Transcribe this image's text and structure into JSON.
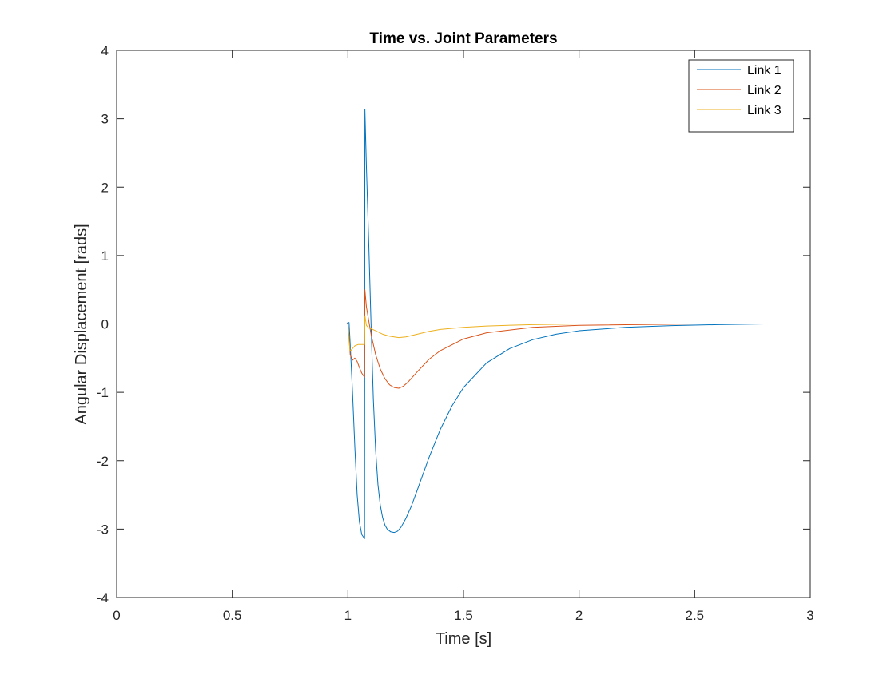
{
  "chart_data": {
    "type": "line",
    "title": "Time vs. Joint Parameters",
    "xlabel": "Time [s]",
    "ylabel": "Angular Displacement [rads]",
    "xlim": [
      0,
      3
    ],
    "ylim": [
      -4,
      4
    ],
    "xticks": [
      0,
      0.5,
      1,
      1.5,
      2,
      2.5,
      3
    ],
    "xtick_labels": [
      "0",
      "0.5",
      "1",
      "1.5",
      "2",
      "2.5",
      "3"
    ],
    "yticks": [
      -4,
      -3,
      -2,
      -1,
      0,
      1,
      2,
      3,
      4
    ],
    "ytick_labels": [
      "-4",
      "-3",
      "-2",
      "-1",
      "0",
      "1",
      "2",
      "3",
      "4"
    ],
    "grid": false,
    "legend_position": "top-right",
    "series": [
      {
        "name": "Link 1",
        "color": "#0072BD",
        "points": [
          [
            0,
            0
          ],
          [
            0.995,
            0
          ],
          [
            1.0,
            0.02
          ],
          [
            1.005,
            0.02
          ],
          [
            1.01,
            -0.3
          ],
          [
            1.02,
            -1.0
          ],
          [
            1.03,
            -1.8
          ],
          [
            1.04,
            -2.5
          ],
          [
            1.05,
            -2.9
          ],
          [
            1.06,
            -3.08
          ],
          [
            1.072,
            -3.14
          ],
          [
            1.0735,
            3.14
          ],
          [
            1.08,
            2.3
          ],
          [
            1.09,
            1.2
          ],
          [
            1.1,
            0
          ],
          [
            1.11,
            -1.1
          ],
          [
            1.12,
            -1.85
          ],
          [
            1.13,
            -2.35
          ],
          [
            1.14,
            -2.65
          ],
          [
            1.15,
            -2.83
          ],
          [
            1.16,
            -2.94
          ],
          [
            1.17,
            -3.0
          ],
          [
            1.185,
            -3.04
          ],
          [
            1.2,
            -3.05
          ],
          [
            1.215,
            -3.03
          ],
          [
            1.23,
            -2.97
          ],
          [
            1.25,
            -2.85
          ],
          [
            1.275,
            -2.66
          ],
          [
            1.3,
            -2.43
          ],
          [
            1.35,
            -1.96
          ],
          [
            1.4,
            -1.54
          ],
          [
            1.45,
            -1.2
          ],
          [
            1.5,
            -0.93
          ],
          [
            1.6,
            -0.57
          ],
          [
            1.7,
            -0.36
          ],
          [
            1.8,
            -0.23
          ],
          [
            1.9,
            -0.15
          ],
          [
            2.0,
            -0.1
          ],
          [
            2.2,
            -0.05
          ],
          [
            2.4,
            -0.025
          ],
          [
            2.6,
            -0.01
          ],
          [
            2.8,
            0
          ],
          [
            3.0,
            0
          ]
        ]
      },
      {
        "name": "Link 2",
        "color": "#D95319",
        "points": [
          [
            0,
            0
          ],
          [
            0.995,
            0
          ],
          [
            1.0,
            0.01
          ],
          [
            1.005,
            -0.2
          ],
          [
            1.01,
            -0.45
          ],
          [
            1.02,
            -0.53
          ],
          [
            1.03,
            -0.5
          ],
          [
            1.04,
            -0.55
          ],
          [
            1.05,
            -0.64
          ],
          [
            1.06,
            -0.72
          ],
          [
            1.072,
            -0.78
          ],
          [
            1.0735,
            0.5
          ],
          [
            1.08,
            0.25
          ],
          [
            1.09,
            0.05
          ],
          [
            1.1,
            -0.15
          ],
          [
            1.12,
            -0.45
          ],
          [
            1.14,
            -0.66
          ],
          [
            1.16,
            -0.8
          ],
          [
            1.18,
            -0.89
          ],
          [
            1.2,
            -0.93
          ],
          [
            1.22,
            -0.94
          ],
          [
            1.24,
            -0.91
          ],
          [
            1.26,
            -0.85
          ],
          [
            1.3,
            -0.7
          ],
          [
            1.35,
            -0.52
          ],
          [
            1.4,
            -0.39
          ],
          [
            1.5,
            -0.22
          ],
          [
            1.6,
            -0.13
          ],
          [
            1.8,
            -0.05
          ],
          [
            2.0,
            -0.02
          ],
          [
            2.5,
            0
          ],
          [
            3.0,
            0
          ]
        ]
      },
      {
        "name": "Link 3",
        "color": "#EDB120",
        "points": [
          [
            0,
            0
          ],
          [
            0.995,
            0
          ],
          [
            1.0,
            0.0
          ],
          [
            1.005,
            -0.25
          ],
          [
            1.01,
            -0.4
          ],
          [
            1.02,
            -0.36
          ],
          [
            1.03,
            -0.32
          ],
          [
            1.045,
            -0.3
          ],
          [
            1.06,
            -0.3
          ],
          [
            1.072,
            -0.3
          ],
          [
            1.0735,
            0.12
          ],
          [
            1.08,
            -0.02
          ],
          [
            1.09,
            -0.06
          ],
          [
            1.1,
            -0.07
          ],
          [
            1.12,
            -0.1
          ],
          [
            1.15,
            -0.15
          ],
          [
            1.18,
            -0.18
          ],
          [
            1.2,
            -0.19
          ],
          [
            1.22,
            -0.2
          ],
          [
            1.25,
            -0.19
          ],
          [
            1.3,
            -0.15
          ],
          [
            1.35,
            -0.11
          ],
          [
            1.4,
            -0.08
          ],
          [
            1.5,
            -0.05
          ],
          [
            1.6,
            -0.03
          ],
          [
            1.8,
            -0.01
          ],
          [
            2.0,
            0
          ],
          [
            3.0,
            0
          ]
        ]
      }
    ]
  }
}
